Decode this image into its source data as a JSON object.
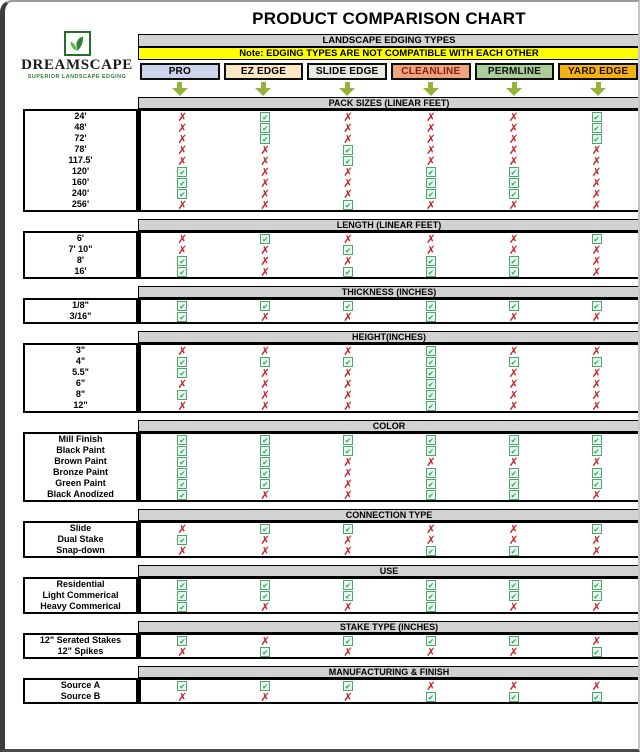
{
  "page": {
    "title": "PRODUCT COMPARISON CHART"
  },
  "logo": {
    "name": "DREAMSCAPE",
    "tagline": "SUPERIOR LANDSCAPE EDGING"
  },
  "banner": {
    "heading": "LANDSCAPE EDGING TYPES",
    "note": "Note: EDGING TYPES ARE NOT COMPATIBLE WITH EACH OTHER"
  },
  "icons": {
    "check": "✔",
    "cross": "✗",
    "arrow": "down-arrow",
    "leaf": "leaf-icon"
  },
  "colors": {
    "section_bar": "#d2d2d2",
    "note_yellow": "#ffff00",
    "check_green": "#2f9e5f",
    "cross_red": "#c1272d",
    "arrow_green": "#94b23c",
    "logo_green": "#2f7d33"
  },
  "products": [
    {
      "label": "PRO",
      "bg": "#ccd4ec",
      "text": "#000000"
    },
    {
      "label": "EZ EDGE",
      "bg": "#fbe7c3",
      "text": "#000000"
    },
    {
      "label": "SLIDE EDGE",
      "bg": "#e6eae1",
      "text": "#000000"
    },
    {
      "label": "CLEANLINE",
      "bg": "#efa57c",
      "text": "#8b1a12"
    },
    {
      "label": "PERMLINE",
      "bg": "#abcd99",
      "text": "#111111"
    },
    {
      "label": "YARD EDGE",
      "bg": "#f4b112",
      "text": "#1a1000"
    }
  ],
  "sections": [
    {
      "title": "PACK SIZES (LINEAR FEET)",
      "rows": [
        {
          "label": "24'",
          "values": [
            0,
            1,
            0,
            0,
            0,
            1
          ]
        },
        {
          "label": "48'",
          "values": [
            0,
            1,
            0,
            0,
            0,
            1
          ]
        },
        {
          "label": "72'",
          "values": [
            0,
            1,
            0,
            0,
            0,
            1
          ]
        },
        {
          "label": "78'",
          "values": [
            0,
            0,
            1,
            0,
            0,
            0
          ]
        },
        {
          "label": "117.5'",
          "values": [
            0,
            0,
            1,
            0,
            0,
            0
          ]
        },
        {
          "label": "120'",
          "values": [
            1,
            0,
            0,
            1,
            1,
            0
          ]
        },
        {
          "label": "160'",
          "values": [
            1,
            0,
            0,
            1,
            1,
            0
          ]
        },
        {
          "label": "240'",
          "values": [
            1,
            0,
            0,
            1,
            1,
            0
          ]
        },
        {
          "label": "256'",
          "values": [
            0,
            0,
            1,
            0,
            0,
            0
          ]
        }
      ]
    },
    {
      "title": "LENGTH (LINEAR FEET)",
      "rows": [
        {
          "label": "6'",
          "values": [
            0,
            1,
            0,
            0,
            0,
            1
          ]
        },
        {
          "label": "7' 10\"",
          "values": [
            0,
            0,
            1,
            0,
            0,
            0
          ]
        },
        {
          "label": "8'",
          "values": [
            1,
            0,
            0,
            1,
            1,
            0
          ]
        },
        {
          "label": "16'",
          "values": [
            1,
            0,
            1,
            1,
            1,
            0
          ]
        }
      ]
    },
    {
      "title": "THICKNESS (INCHES)",
      "rows": [
        {
          "label": "1/8\"",
          "values": [
            1,
            1,
            1,
            1,
            1,
            1
          ]
        },
        {
          "label": "3/16\"",
          "values": [
            1,
            0,
            0,
            1,
            0,
            0
          ]
        }
      ]
    },
    {
      "title": "HEIGHT(INCHES)",
      "rows": [
        {
          "label": "3\"",
          "values": [
            0,
            0,
            0,
            1,
            0,
            0
          ]
        },
        {
          "label": "4\"",
          "values": [
            1,
            1,
            1,
            1,
            1,
            1
          ]
        },
        {
          "label": "5.5\"",
          "values": [
            1,
            0,
            0,
            1,
            0,
            0
          ]
        },
        {
          "label": "6\"",
          "values": [
            0,
            0,
            0,
            1,
            0,
            0
          ]
        },
        {
          "label": "8\"",
          "values": [
            1,
            0,
            0,
            1,
            0,
            0
          ]
        },
        {
          "label": "12\"",
          "values": [
            0,
            0,
            0,
            1,
            0,
            0
          ]
        }
      ]
    },
    {
      "title": "COLOR",
      "rows": [
        {
          "label": "Mill Finish",
          "values": [
            1,
            1,
            1,
            1,
            1,
            1
          ]
        },
        {
          "label": "Black Paint",
          "values": [
            1,
            1,
            1,
            1,
            1,
            1
          ]
        },
        {
          "label": "Brown Paint",
          "values": [
            1,
            1,
            0,
            0,
            0,
            0
          ]
        },
        {
          "label": "Bronze Paint",
          "values": [
            1,
            1,
            0,
            1,
            1,
            1
          ]
        },
        {
          "label": "Green Paint",
          "values": [
            1,
            1,
            0,
            1,
            1,
            1
          ]
        },
        {
          "label": "Black Anodized",
          "values": [
            1,
            0,
            0,
            1,
            1,
            0
          ]
        }
      ]
    },
    {
      "title": "CONNECTION TYPE",
      "rows": [
        {
          "label": "Slide",
          "values": [
            0,
            1,
            1,
            0,
            0,
            1
          ]
        },
        {
          "label": "Dual Stake",
          "values": [
            1,
            0,
            0,
            0,
            0,
            0
          ]
        },
        {
          "label": "Snap-down",
          "values": [
            0,
            0,
            0,
            1,
            1,
            0
          ]
        }
      ]
    },
    {
      "title": "USE",
      "rows": [
        {
          "label": "Residential",
          "values": [
            1,
            1,
            1,
            1,
            1,
            1
          ]
        },
        {
          "label": "Light Commerical",
          "values": [
            1,
            1,
            1,
            1,
            1,
            1
          ]
        },
        {
          "label": "Heavy Commerical",
          "values": [
            1,
            0,
            0,
            1,
            0,
            0
          ]
        }
      ]
    },
    {
      "title": "STAKE TYPE (INCHES)",
      "rows": [
        {
          "label": "12\" Serated Stakes",
          "values": [
            1,
            0,
            1,
            1,
            1,
            0
          ]
        },
        {
          "label": "12\" Spikes",
          "values": [
            0,
            1,
            0,
            0,
            0,
            1
          ]
        }
      ]
    },
    {
      "title": "MANUFACTURING & FINISH",
      "rows": [
        {
          "label": "Source A",
          "values": [
            1,
            1,
            1,
            0,
            0,
            0
          ]
        },
        {
          "label": "Source B",
          "values": [
            0,
            0,
            0,
            1,
            1,
            1
          ]
        }
      ]
    }
  ]
}
